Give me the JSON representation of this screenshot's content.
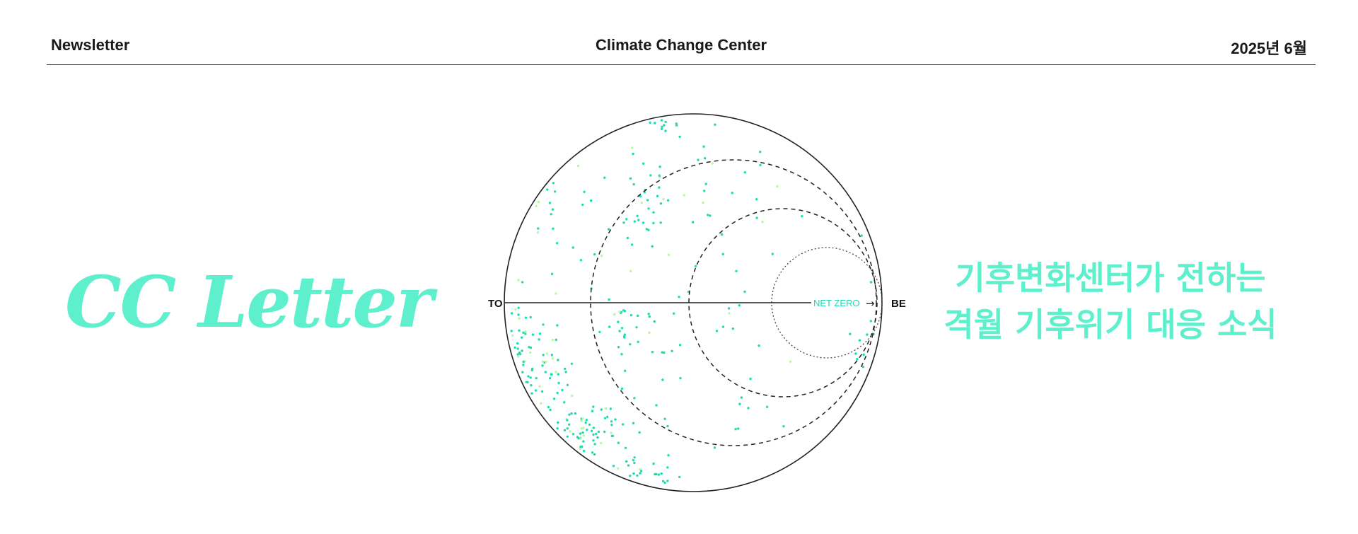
{
  "header": {
    "left": "Newsletter",
    "center": "Climate Change Center",
    "right": "2025년 6월"
  },
  "logo": {
    "text": "CC Letter"
  },
  "diagram": {
    "left_label": "TO",
    "right_label": "BE",
    "axis_label": "NET ZERO",
    "arrow": "→"
  },
  "tagline": {
    "line1": "기후변화센터가 전하는",
    "line2": "격월 기후위기 대응 소식"
  },
  "colors": {
    "accent": "#5ef0cc",
    "dot": "#1fdcb0",
    "dot_light": "#b9f7a6",
    "line": "#222222"
  }
}
